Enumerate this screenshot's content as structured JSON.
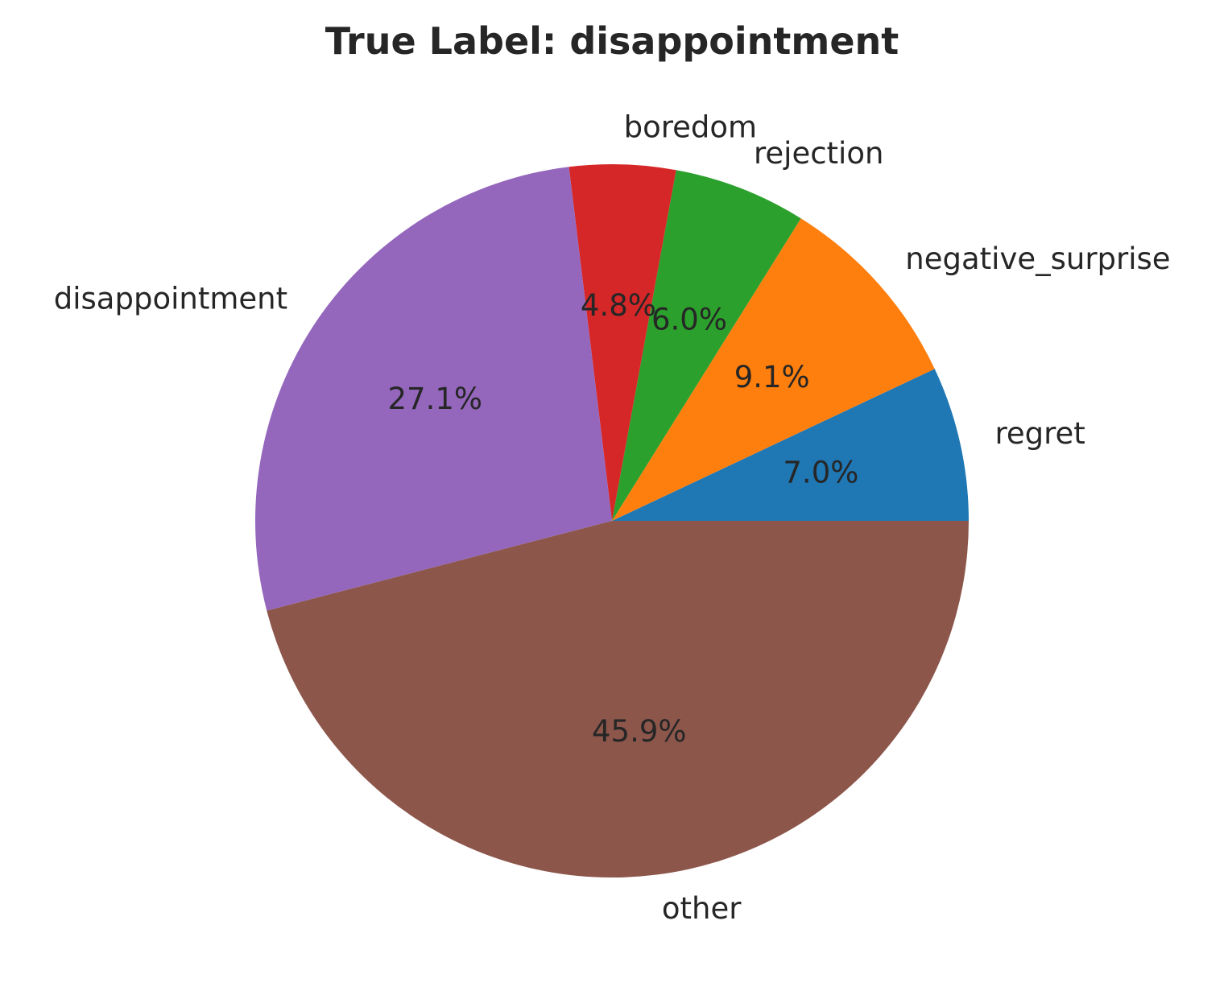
{
  "chart_data": {
    "type": "pie",
    "title": "True Label: disappointment",
    "start_angle_deg": 0,
    "direction": "counterclockwise",
    "slices": [
      {
        "label": "regret",
        "value": 7.0,
        "pct_text": "7.0%",
        "color": "#1f77b4"
      },
      {
        "label": "negative_surprise",
        "value": 9.1,
        "pct_text": "9.1%",
        "color": "#ff7f0e"
      },
      {
        "label": "rejection",
        "value": 6.0,
        "pct_text": "6.0%",
        "color": "#2ca02c"
      },
      {
        "label": "boredom",
        "value": 4.8,
        "pct_text": "4.8%",
        "color": "#d62728"
      },
      {
        "label": "disappointment",
        "value": 27.1,
        "pct_text": "27.1%",
        "color": "#9467bd"
      },
      {
        "label": "other",
        "value": 45.9,
        "pct_text": "45.9%",
        "color": "#8c564b"
      }
    ]
  }
}
